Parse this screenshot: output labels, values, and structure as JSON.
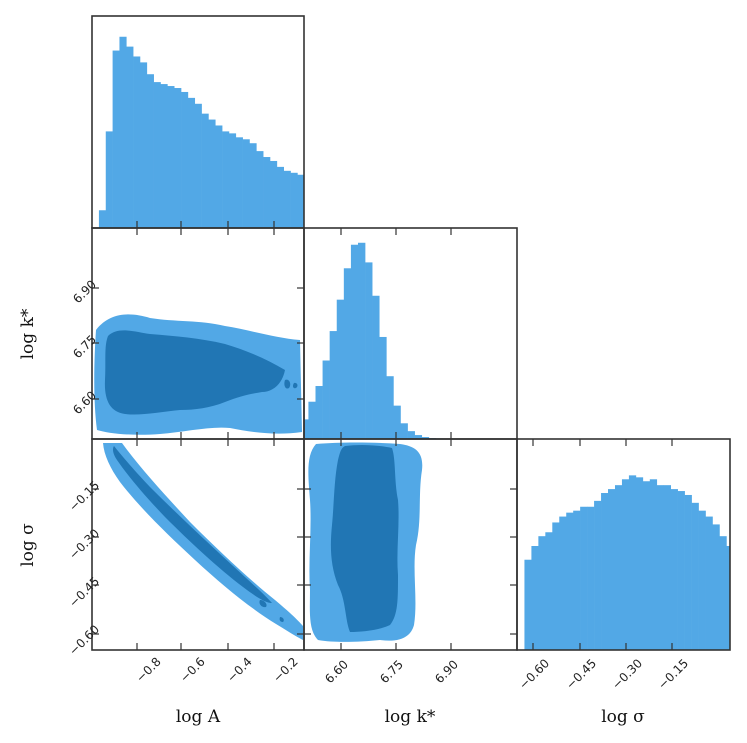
{
  "colors": {
    "light": "#52a8e6",
    "dark": "#2176b4",
    "frame": "#333333"
  },
  "axis_titles": {
    "A": "log A",
    "k": "log k*",
    "s": "log σ"
  },
  "tick_labels": {
    "A_x": [
      "−0.8",
      "−0.6",
      "−0.4",
      "−0.2"
    ],
    "k_x": [
      "6.60",
      "6.75",
      "6.90"
    ],
    "s_x": [
      "−0.60",
      "−0.45",
      "−0.30",
      "−0.15"
    ],
    "k_y": [
      "6.90",
      "6.75",
      "6.60"
    ],
    "s_y": [
      "−0.15",
      "−0.30",
      "−0.45",
      "−0.60"
    ]
  },
  "chart_data": [
    {
      "type": "histogram",
      "variable": "log A",
      "xlim": [
        -1.0,
        -0.08
      ],
      "xticks": [
        -0.8,
        -0.6,
        -0.4,
        -0.2
      ],
      "bin_edges_start": -0.97,
      "bin_width": 0.0297,
      "counts_relative": [
        0.09,
        0.49,
        0.9,
        0.97,
        0.92,
        0.87,
        0.84,
        0.78,
        0.74,
        0.73,
        0.72,
        0.71,
        0.69,
        0.66,
        0.63,
        0.58,
        0.55,
        0.52,
        0.49,
        0.48,
        0.46,
        0.45,
        0.43,
        0.39,
        0.36,
        0.34,
        0.31,
        0.29,
        0.28,
        0.27
      ]
    },
    {
      "type": "histogram",
      "variable": "log k*",
      "xlim": [
        6.55,
        6.95
      ],
      "xticks": [
        6.6,
        6.75,
        6.9
      ],
      "bin_edges_start": 6.545,
      "bin_width": 0.0133,
      "counts_relative": [
        0.1,
        0.19,
        0.27,
        0.4,
        0.55,
        0.71,
        0.87,
        0.99,
        1.0,
        0.9,
        0.73,
        0.52,
        0.32,
        0.17,
        0.08,
        0.04,
        0.02,
        0.01,
        0.005,
        0.003,
        0,
        0,
        0,
        0,
        0,
        0,
        0,
        0,
        0,
        0
      ]
    },
    {
      "type": "histogram",
      "variable": "log σ",
      "xlim": [
        -0.65,
        -0.02
      ],
      "xticks": [
        -0.6,
        -0.45,
        -0.3,
        -0.15
      ],
      "bin_edges_start": -0.628,
      "bin_width": 0.0206,
      "counts_relative": [
        0.46,
        0.53,
        0.58,
        0.6,
        0.65,
        0.68,
        0.7,
        0.71,
        0.73,
        0.73,
        0.76,
        0.8,
        0.82,
        0.84,
        0.87,
        0.89,
        0.88,
        0.86,
        0.87,
        0.84,
        0.84,
        0.82,
        0.81,
        0.79,
        0.75,
        0.71,
        0.68,
        0.64,
        0.58,
        0.53
      ]
    },
    {
      "type": "contour",
      "x": "log A",
      "y": "log k*",
      "levels": [
        "outer",
        "inner"
      ],
      "description_center": [
        -0.55,
        6.66
      ]
    },
    {
      "type": "contour",
      "x": "log A",
      "y": "log σ",
      "levels": [
        "outer",
        "inner"
      ],
      "trend": "strong negative correlation"
    },
    {
      "type": "contour",
      "x": "log k*",
      "y": "log σ",
      "levels": [
        "outer",
        "inner"
      ],
      "description_center": [
        6.68,
        -0.3
      ]
    }
  ]
}
